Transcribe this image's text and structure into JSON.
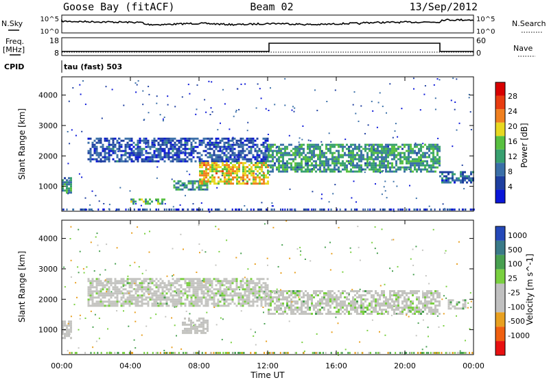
{
  "header": {
    "station": "Goose Bay (fitACF)",
    "beam": "Beam 02",
    "date": "13/Sep/2012"
  },
  "noise_panel": {
    "left_label": "N.Sky",
    "right_label": "N.Search",
    "ticks": [
      "10^5",
      "10^0"
    ]
  },
  "freq_panel": {
    "left_label_1": "Freq.",
    "left_label_2": "[MHz]",
    "left_ticks": [
      "18",
      "8"
    ],
    "right_label": "Nave",
    "right_ticks": [
      "60",
      "0"
    ]
  },
  "cpid": {
    "label": "CPID",
    "program": "tau (fast) 503"
  },
  "colors": {
    "power": [
      "#0a16d8",
      "#1e3fa0",
      "#3a6fa8",
      "#38a070",
      "#58c040",
      "#e8d820",
      "#f08020",
      "#e83c10",
      "#d80000"
    ],
    "velocity": [
      "#2448b8",
      "#3a7a88",
      "#48a050",
      "#7ad040",
      "#c0c0c0",
      "#c0c0c0",
      "#e8a020",
      "#f06010",
      "#e81010"
    ],
    "scatter_grey": "#c4c4c0"
  },
  "chart_data": [
    {
      "type": "heatmap",
      "name": "power",
      "ylabel": "Slant Range [km]",
      "y_ticks": [
        1000,
        2000,
        3000,
        4000
      ],
      "ylim": [
        180,
        4600
      ],
      "xlim": [
        0,
        24
      ],
      "colorbar_label": "Power [dB]",
      "colorbar_ticks": [
        "4",
        "8",
        "12",
        "16",
        "20",
        "24",
        "28"
      ],
      "colorbar_range": [
        0,
        32
      ],
      "regions": [
        {
          "x": [
            0.0,
            0.5
          ],
          "y": [
            800,
            1300
          ],
          "value": 12
        },
        {
          "x": [
            1.5,
            12.0
          ],
          "y": [
            1800,
            2600
          ],
          "value": 6
        },
        {
          "x": [
            4.0,
            6.0
          ],
          "y": [
            400,
            600
          ],
          "value": 14
        },
        {
          "x": [
            6.5,
            8.5
          ],
          "y": [
            900,
            1200
          ],
          "value": 12
        },
        {
          "x": [
            8.0,
            12.0
          ],
          "y": [
            1100,
            1800
          ],
          "value": 20
        },
        {
          "x": [
            12.0,
            22.0
          ],
          "y": [
            1500,
            2400
          ],
          "value": 12
        },
        {
          "x": [
            22.0,
            24.0
          ],
          "y": [
            1100,
            1500
          ],
          "value": 8
        }
      ]
    },
    {
      "type": "heatmap",
      "name": "velocity",
      "ylabel": "Slant Range [km]",
      "y_ticks": [
        1000,
        2000,
        3000,
        4000
      ],
      "ylim": [
        180,
        4600
      ],
      "xlim": [
        0,
        24
      ],
      "xlabel": "Time UT",
      "x_ticks": [
        "00:00",
        "04:00",
        "08:00",
        "12:00",
        "16:00",
        "20:00",
        "00:00"
      ],
      "colorbar_label": "Velocity [m s^-1]",
      "colorbar_ticks": [
        "1000",
        "500",
        "100",
        "25",
        "-25",
        "-100",
        "-500",
        "-1000"
      ],
      "regions": [
        {
          "x": [
            0.0,
            0.6
          ],
          "y": [
            700,
            1300
          ],
          "value": -300
        },
        {
          "x": [
            1.5,
            12.0
          ],
          "y": [
            1800,
            2700
          ],
          "value": 0
        },
        {
          "x": [
            7.0,
            8.5
          ],
          "y": [
            900,
            1400
          ],
          "value": -150
        },
        {
          "x": [
            12.0,
            22.0
          ],
          "y": [
            1500,
            2300
          ],
          "value": 0
        },
        {
          "x": [
            22.5,
            23.5
          ],
          "y": [
            1700,
            2000
          ],
          "value": 60
        }
      ]
    }
  ]
}
